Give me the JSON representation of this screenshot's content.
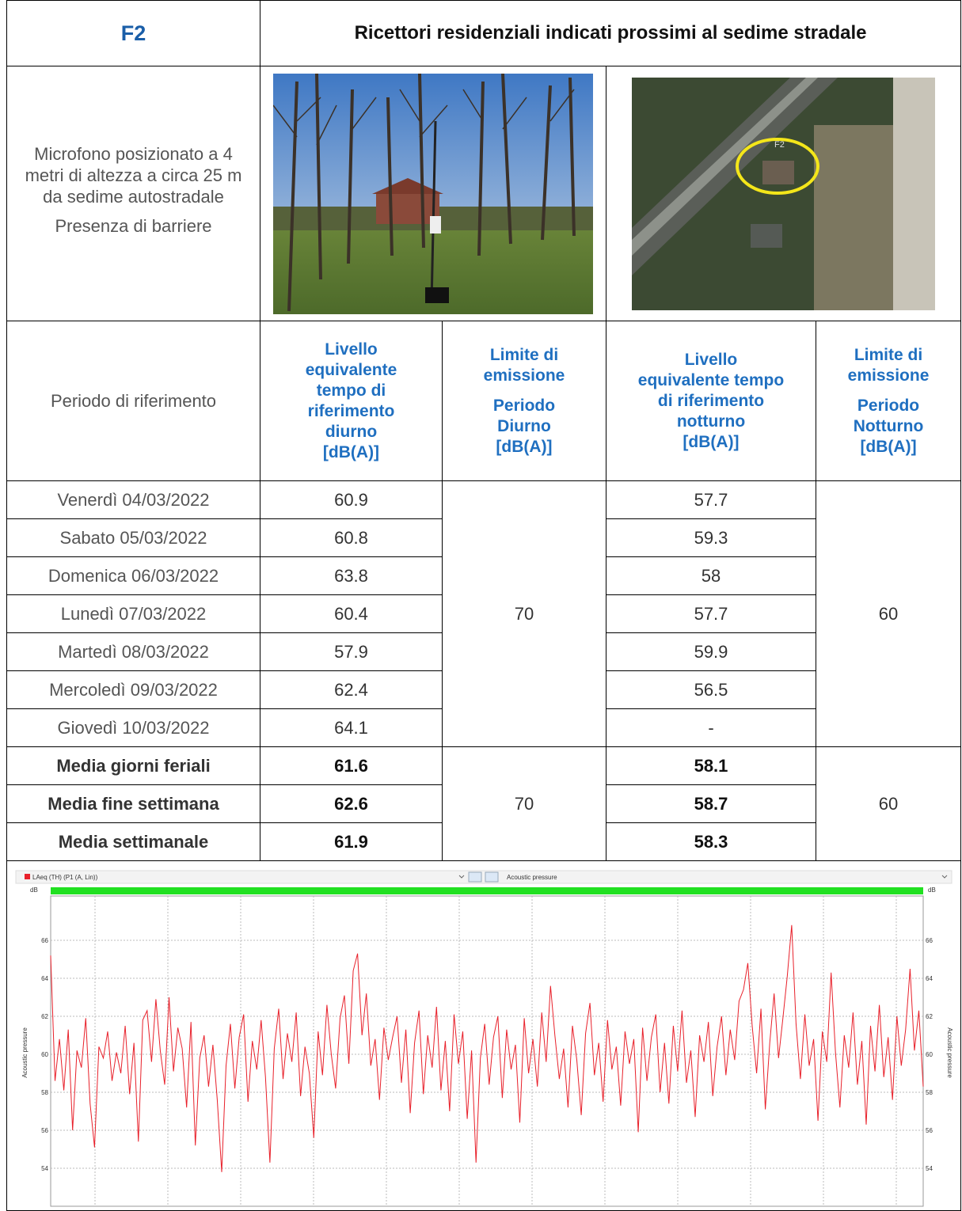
{
  "header": {
    "id": "F2",
    "title": "Ricettori residenziali indicati prossimi al sedime stradale"
  },
  "description": [
    "Microfono posizionato a 4 metri di altezza a circa 25 m da sedime autostradale",
    "Presenza di barriere"
  ],
  "map_label": "F2",
  "table": {
    "columns": [
      "Periodo di riferimento",
      "Livello\nequivalente\ntempo di\nriferimento\ndiurno\n[dB(A)]",
      [
        "Limite di\nemissione",
        "Periodo\nDiurno\n[dB(A)]"
      ],
      "Livello\nequivalente tempo\ndi riferimento\nnotturno\n[dB(A)]",
      [
        "Limite di\nemissione",
        "Periodo\nNotturno\n[dB(A)]"
      ]
    ],
    "rows": [
      [
        "Venerdì 04/03/2022",
        60.9,
        57.7
      ],
      [
        "Sabato 05/03/2022",
        60.8,
        59.3
      ],
      [
        "Domenica 06/03/2022",
        63.8,
        58
      ],
      [
        "Lunedì 07/03/2022",
        60.4,
        57.7
      ],
      [
        "Martedì 08/03/2022",
        57.9,
        59.9
      ],
      [
        "Mercoledì 09/03/2022",
        62.4,
        56.5
      ],
      [
        "Giovedì 10/03/2022",
        64.1,
        "-"
      ]
    ],
    "limits": [
      70,
      60
    ],
    "summary": [
      [
        "Media giorni feriali",
        61.6,
        58.1
      ],
      [
        "Media fine settimana",
        62.6,
        58.7
      ],
      [
        "Media settimanale",
        61.9,
        58.3
      ]
    ],
    "summary_limits": [
      70,
      60
    ]
  },
  "chart_data": {
    "type": "line",
    "series_label": "LAeq (TH) (P1 (A, Lin))",
    "toolbar_label": "Acoustic pressure",
    "y_unit": "dB",
    "ylabel": "Acoustic pressure",
    "color": "#e8202a",
    "ylim": [
      52,
      68
    ],
    "yticks": [
      54,
      56,
      58,
      60,
      62,
      64,
      66
    ],
    "grid": true,
    "values": [
      65.2,
      58.6,
      60.8,
      58.1,
      61.3,
      56.0,
      60.2,
      59.3,
      61.9,
      57.4,
      55.1,
      60.4,
      59.8,
      61.2,
      58.6,
      60.1,
      59.0,
      61.5,
      57.9,
      60.6,
      55.4,
      61.8,
      62.3,
      59.6,
      62.9,
      60.2,
      58.4,
      63.0,
      59.1,
      61.4,
      60.3,
      57.2,
      61.7,
      55.2,
      59.8,
      61.0,
      58.3,
      60.5,
      57.6,
      53.8,
      59.4,
      61.6,
      58.2,
      60.9,
      62.1,
      57.5,
      60.7,
      59.2,
      61.8,
      58.8,
      54.3,
      60.3,
      62.4,
      58.7,
      61.1,
      59.6,
      62.2,
      57.8,
      60.4,
      59.0,
      55.6,
      61.2,
      58.9,
      62.6,
      60.0,
      58.2,
      61.9,
      63.1,
      59.5,
      64.4,
      65.3,
      61.0,
      63.2,
      59.4,
      60.8,
      57.6,
      61.4,
      59.7,
      60.9,
      62.0,
      58.5,
      61.3,
      56.9,
      60.6,
      62.3,
      57.9,
      61.0,
      59.3,
      62.5,
      58.1,
      60.7,
      57.0,
      62.1,
      59.5,
      61.2,
      56.6,
      60.2,
      54.3,
      59.8,
      61.6,
      58.4,
      60.9,
      62.0,
      57.7,
      61.3,
      59.2,
      60.5,
      56.4,
      61.9,
      59.0,
      60.8,
      58.3,
      62.2,
      59.6,
      63.6,
      61.0,
      58.7,
      60.3,
      57.2,
      61.5,
      59.7,
      56.8,
      61.1,
      62.7,
      58.9,
      60.6,
      57.5,
      61.8,
      59.2,
      60.4,
      57.3,
      61.2,
      59.5,
      60.8,
      55.9,
      61.4,
      58.6,
      60.9,
      62.1,
      58.0,
      60.6,
      57.4,
      61.5,
      59.1,
      62.3,
      58.5,
      60.2,
      56.7,
      61.0,
      59.6,
      61.7,
      57.8,
      60.4,
      62.0,
      58.9,
      61.3,
      59.7,
      62.8,
      63.4,
      64.8,
      61.5,
      59.0,
      62.4,
      57.1,
      60.6,
      63.2,
      59.8,
      61.9,
      64.1,
      66.8,
      61.6,
      58.7,
      62.1,
      59.4,
      60.8,
      56.5,
      61.2,
      59.6,
      64.3,
      60.1,
      57.2,
      61.0,
      59.3,
      62.2,
      58.4,
      60.7,
      56.3,
      61.5,
      59.1,
      62.6,
      58.8,
      60.9,
      57.6,
      62.0,
      59.4,
      61.3,
      64.5,
      60.2,
      62.3,
      58.3
    ]
  }
}
